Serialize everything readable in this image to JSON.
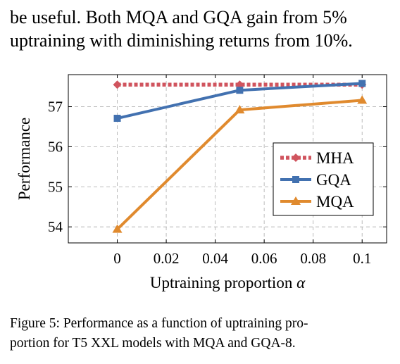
{
  "paragraph": {
    "line1": "be useful.  Both MQA and GQA gain from 5%",
    "line2": "uptraining with diminishing returns from 10%."
  },
  "chart_data": {
    "type": "line",
    "xlabel_text": "Uptraining proportion ",
    "xlabel_symbol": "α",
    "ylabel": "Performance",
    "xlim": [
      -0.02,
      0.11
    ],
    "ylim": [
      53.6,
      57.8
    ],
    "xticks": [
      0,
      0.02,
      0.04,
      0.06,
      0.08,
      0.1
    ],
    "xtick_labels": [
      "0",
      "0.02",
      "0.04",
      "0.06",
      "0.08",
      "0.1"
    ],
    "yticks": [
      54,
      55,
      56,
      57
    ],
    "ytick_labels": [
      "54",
      "55",
      "56",
      "57"
    ],
    "grid": true,
    "legend_position": "right",
    "series": [
      {
        "name": "MHA",
        "x": [
          0,
          0.05,
          0.1
        ],
        "y": [
          57.55,
          57.55,
          57.55
        ],
        "color": "#d0545e",
        "style": "dotted",
        "marker": "diamond"
      },
      {
        "name": "GQA",
        "x": [
          0,
          0.05,
          0.1
        ],
        "y": [
          56.71,
          57.41,
          57.58
        ],
        "color": "#4271b0",
        "style": "solid",
        "marker": "square"
      },
      {
        "name": "MQA",
        "x": [
          0,
          0.05,
          0.1
        ],
        "y": [
          53.94,
          56.92,
          57.16
        ],
        "color": "#e08a2e",
        "style": "solid",
        "marker": "triangle"
      }
    ]
  },
  "caption": {
    "line1": "Figure 5: Performance as a function of uptraining pro-",
    "line2": "portion for T5 XXL models with MQA and GQA-8."
  }
}
